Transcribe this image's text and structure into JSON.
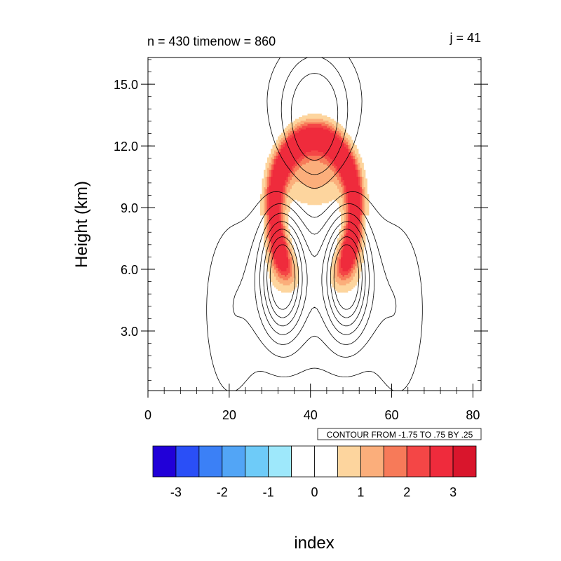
{
  "chart_data": {
    "type": "heatmap",
    "title_left": "n = 430 timenow = 860",
    "title_right": "j = 41",
    "ylabel": "Height (km)",
    "xlabel": "index",
    "xlim": [
      0,
      82
    ],
    "ylim": [
      0.1,
      16.3
    ],
    "x_ticks": [
      "0",
      "20",
      "40",
      "60",
      "80"
    ],
    "x_tick_values": [
      0,
      20,
      40,
      60,
      80
    ],
    "y_ticks": [
      "3.0",
      "6.0",
      "9.0",
      "12.0",
      "15.0"
    ],
    "y_tick_values": [
      3,
      6,
      9,
      12,
      15
    ],
    "contour_info": "CONTOUR FROM -1.75 TO .75 BY .25",
    "colorbar": {
      "colors": [
        "#2100d8",
        "#2a4ff7",
        "#3b80f6",
        "#52a5f6",
        "#6ecbf8",
        "#9ee8fb",
        "#ffffff",
        "#ffffff",
        "#fdd59e",
        "#fbae7b",
        "#f77a59",
        "#f44646",
        "#ef2b3c",
        "#d9152c"
      ],
      "tick_labels": [
        "-3",
        "-2",
        "-1",
        "0",
        "1",
        "2",
        "3"
      ]
    },
    "shading_levels": [
      {
        "min": 0.5,
        "color": "#fdd59e"
      },
      {
        "min": 1.0,
        "color": "#fbae7b"
      },
      {
        "min": 1.5,
        "color": "#f77a59"
      },
      {
        "min": 2.0,
        "color": "#f44646"
      },
      {
        "min": 2.5,
        "color": "#ef2b3c"
      }
    ]
  }
}
